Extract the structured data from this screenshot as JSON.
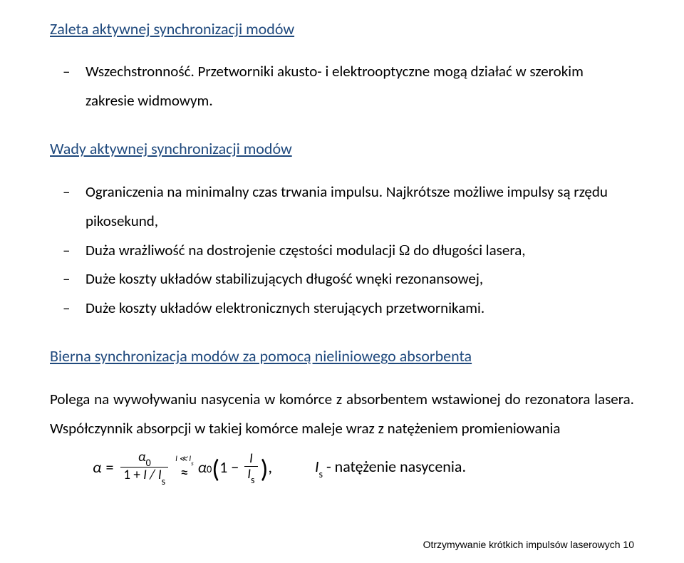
{
  "heading1": {
    "text": "Zaleta aktywnej synchronizacji modów",
    "color": "#1f497d"
  },
  "heading2": {
    "text": "Wady aktywnej  synchronizacji modów",
    "color": "#1f497d"
  },
  "heading3": {
    "text": "Bierna synchronizacja modów za pomocą nieliniowego absorbenta",
    "color": "#1f497d"
  },
  "bullets1": [
    "Wszechstronność. Przetworniki akusto- i elektrooptyczne mogą działać w szerokim zakresie widmowym."
  ],
  "bullets2": [
    "Ograniczenia na minimalny czas trwania impulsu. Najkrótsze możliwe impulsy są rzędu pikosekund,",
    "__OMEGA__",
    "Duże koszty układów stabilizujących długość wnęki rezonansowej,",
    "Duże koszty układów elektronicznych sterujących przetwornikami."
  ],
  "omega_line_prefix": "Duża wrażliwość na dostrojenie częstości modulacji ",
  "omega_line_suffix": " do długości lasera,",
  "para1": "Polega na wywoływaniu nasycenia w komórce z absorbentem wstawionej do rezonatora lasera. Współczynnik absorpcji w takiej komórce maleje wraz z natężeniem promieniowania",
  "eq": {
    "alpha": "α",
    "equals": "=",
    "num1": "α",
    "sub0": "0",
    "den1_prefix": "1 + ",
    "den1_IIs": "I / I",
    "approx": "≈",
    "approx_top": "I ≪ I",
    "approx_top_sub": "s",
    "one_minus": "1 −",
    "comma": ","
  },
  "legend_prefix": "I",
  "legend_sub": "s",
  "legend_text": " - natężenie nasycenia.",
  "footer": "Otrzymywanie krótkich impulsów laserowych 10",
  "styles": {
    "body_color": "#000000",
    "heading_fontsize": 22,
    "body_fontsize": 21,
    "footer_fontsize": 14,
    "background": "#ffffff"
  }
}
